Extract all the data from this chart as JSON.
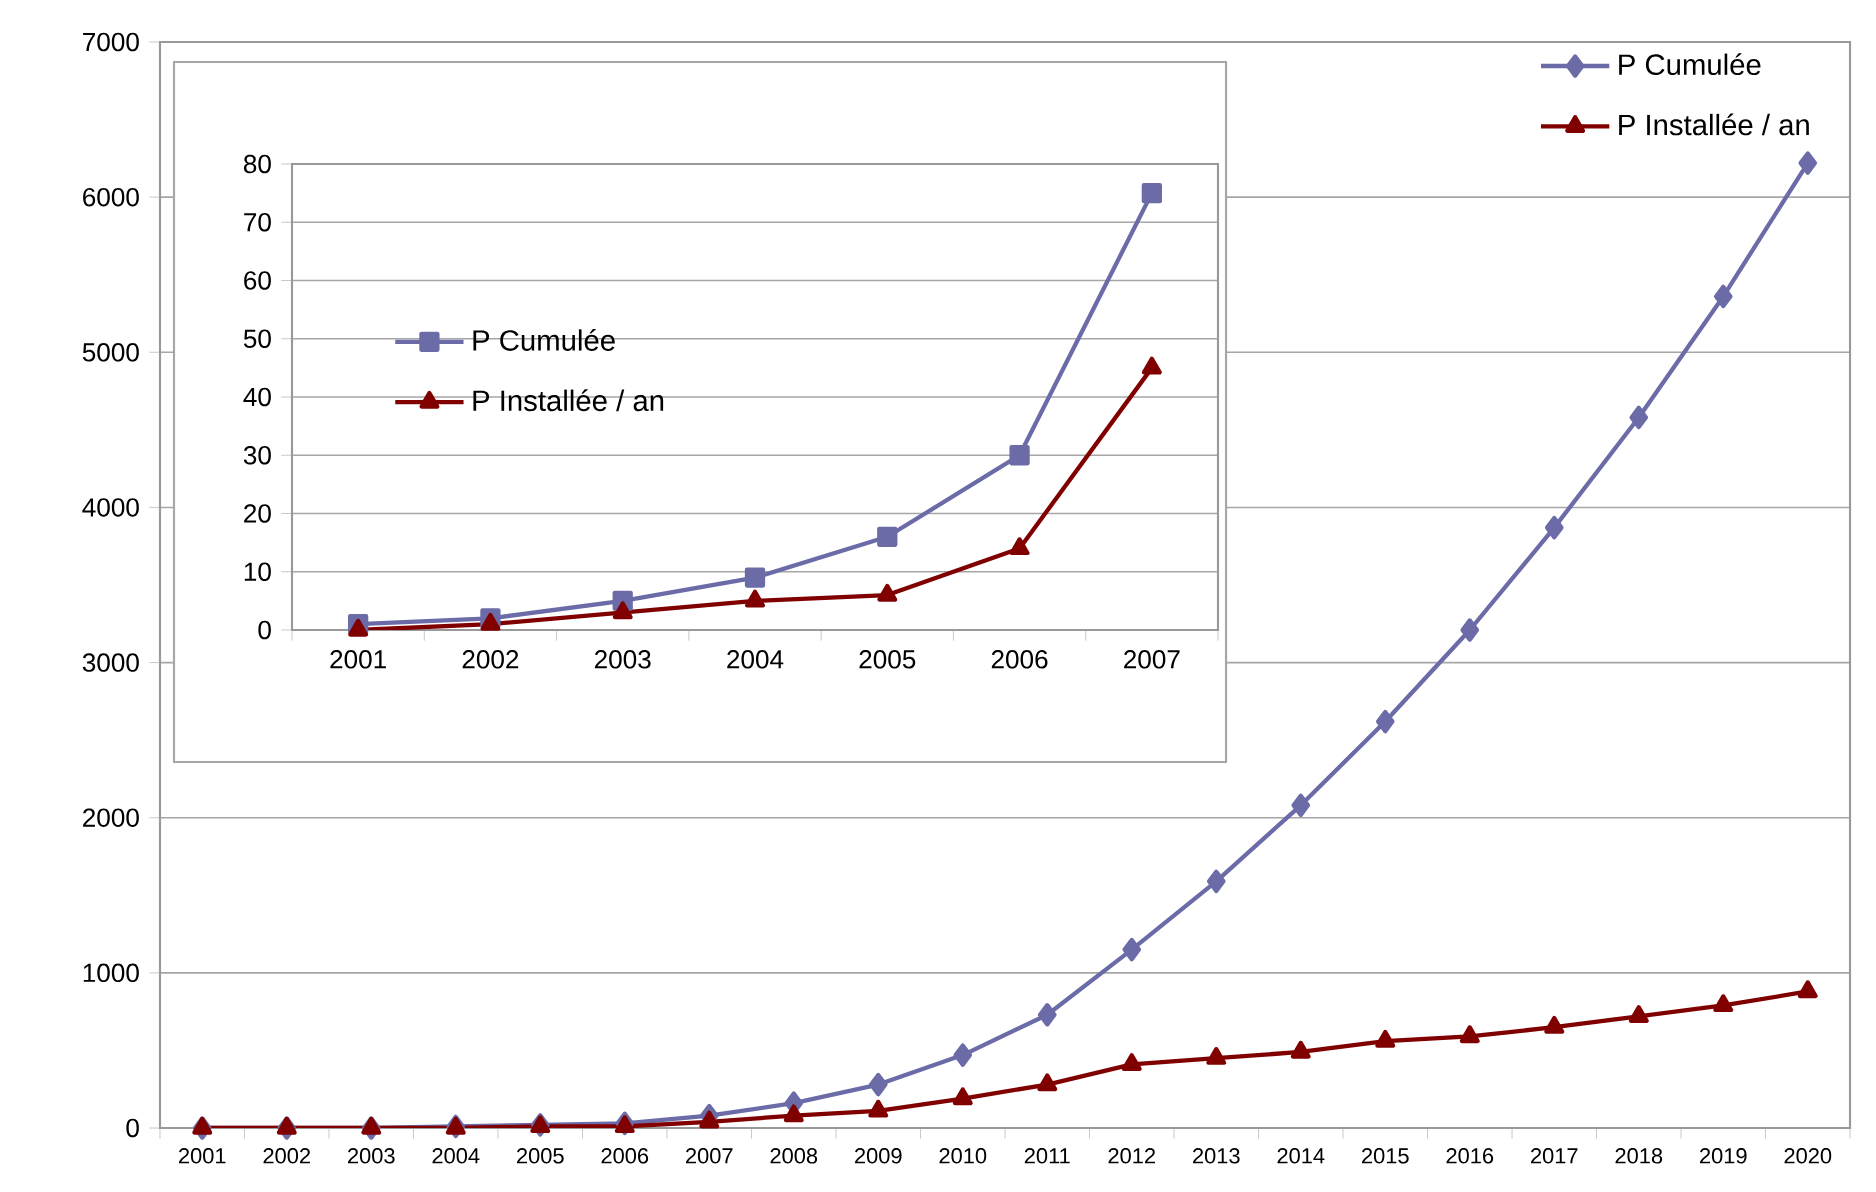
{
  "chart_data": [
    {
      "type": "line",
      "categories": [
        "2001",
        "2002",
        "2003",
        "2004",
        "2005",
        "2006",
        "2007",
        "2008",
        "2009",
        "2010",
        "2011",
        "2012",
        "2013",
        "2014",
        "2015",
        "2016",
        "2017",
        "2018",
        "2019",
        "2020"
      ],
      "series": [
        {
          "name": "P Cumulée",
          "color": "#6b6ba8",
          "marker": "diamond",
          "values": [
            0,
            0,
            0,
            10,
            20,
            30,
            80,
            160,
            280,
            470,
            730,
            1150,
            1590,
            2080,
            2620,
            3210,
            3870,
            4580,
            5360,
            6220
          ]
        },
        {
          "name": "P Installée / an",
          "color": "#800000",
          "marker": "triangle",
          "values": [
            0,
            0,
            0,
            0,
            10,
            10,
            40,
            80,
            110,
            190,
            280,
            410,
            450,
            490,
            560,
            590,
            650,
            720,
            790,
            880
          ]
        }
      ],
      "ylim": [
        0,
        7000
      ],
      "yticks": [
        0,
        1000,
        2000,
        3000,
        4000,
        5000,
        6000,
        7000
      ],
      "grid": "y",
      "legend": "top right"
    },
    {
      "type": "line",
      "categories": [
        "2001",
        "2002",
        "2003",
        "2004",
        "2005",
        "2006",
        "2007"
      ],
      "series": [
        {
          "name": "P Cumulée",
          "color": "#6b6ba8",
          "marker": "square",
          "values": [
            1,
            2,
            5,
            9,
            16,
            30,
            75
          ]
        },
        {
          "name": "P Installée / an",
          "color": "#800000",
          "marker": "triangle",
          "values": [
            0,
            1,
            3,
            5,
            6,
            14,
            45
          ]
        }
      ],
      "ylim": [
        0,
        80
      ],
      "yticks": [
        0,
        10,
        20,
        30,
        40,
        50,
        60,
        70,
        80
      ],
      "grid": "y",
      "legend": "left"
    }
  ]
}
